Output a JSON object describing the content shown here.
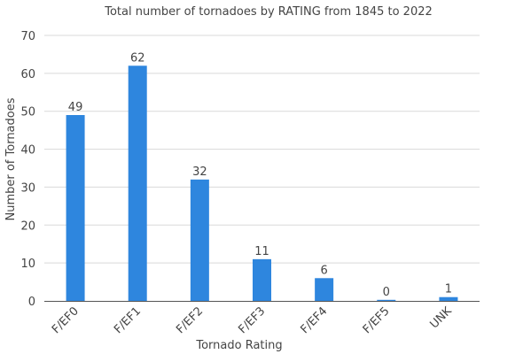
{
  "chart_data": {
    "type": "bar",
    "title": "Total number of tornadoes by RATING from 1845 to 2022",
    "xlabel": "Tornado Rating",
    "ylabel": "Number of Tornadoes",
    "categories": [
      "F/EF0",
      "F/EF1",
      "F/EF2",
      "F/EF3",
      "F/EF4",
      "F/EF5",
      "UNK"
    ],
    "values": [
      49,
      62,
      32,
      11,
      6,
      0,
      1
    ],
    "data_labels": [
      "49",
      "62",
      "32",
      "11",
      "6",
      "0",
      "1"
    ],
    "ylim": [
      0,
      70
    ],
    "yticks": [
      0,
      10,
      20,
      30,
      40,
      50,
      60,
      70
    ],
    "grid": true,
    "bar_color": "#2e86de"
  }
}
